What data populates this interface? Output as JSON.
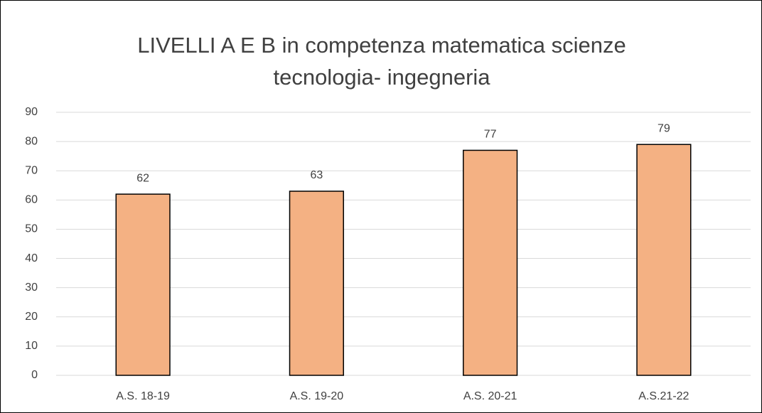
{
  "chart_data": {
    "type": "bar",
    "title": "LIVELLI A E B in competenza matematica scienze tecnologia- ingegneria",
    "categories": [
      "A.S. 18-19",
      "A.S. 19-20",
      "A.S. 20-21",
      "A.S.21-22"
    ],
    "values": [
      62,
      63,
      77,
      79
    ],
    "color": "#f4b183",
    "ylim": [
      0,
      90
    ],
    "yticks": [
      0,
      10,
      20,
      30,
      40,
      50,
      60,
      70,
      80,
      90
    ],
    "grid": true,
    "data_labels": true
  }
}
